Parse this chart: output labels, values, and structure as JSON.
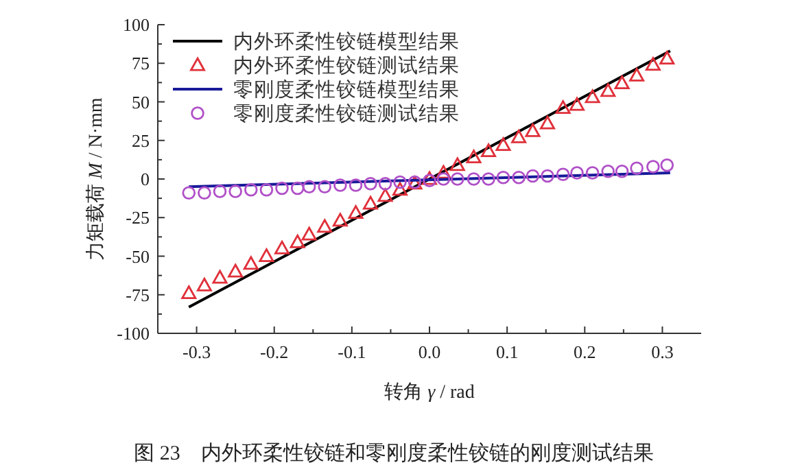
{
  "chart_data": {
    "type": "line",
    "xlabel": "转角 *γ* / rad",
    "ylabel": "力矩载荷 *M* / N·mm",
    "annotations": [
      "图 23　内外环柔性铰链和零刚度柔性铰链的刚度测试结果"
    ],
    "xlim": [
      -0.35,
      0.35
    ],
    "ylim": [
      -100,
      100
    ],
    "xticks": [
      -0.3,
      {
        "value": -0.25,
        "label": null
      },
      -0.2,
      {
        "value": -0.15,
        "label": null
      },
      -0.1,
      {
        "value": -0.05,
        "label": null
      },
      {
        "value": 0,
        "label": "0.0"
      },
      {
        "value": 0.05,
        "label": null
      },
      0.1,
      {
        "value": 0.15,
        "label": null
      },
      0.2,
      {
        "value": 0.25,
        "label": null
      },
      0.3
    ],
    "yticks": [
      -100,
      {
        "value": -87.5,
        "label": null
      },
      -75,
      {
        "value": -62.5,
        "label": null
      },
      -50,
      {
        "value": -37.5,
        "label": null
      },
      -25,
      {
        "value": -12.5,
        "label": null
      },
      0,
      {
        "value": 12.5,
        "label": null
      },
      25,
      {
        "value": 37.5,
        "label": null
      },
      50,
      {
        "value": 62.5,
        "label": null
      },
      75,
      {
        "value": 87.5,
        "label": null
      },
      100
    ],
    "legend": "top left",
    "grid": false,
    "series": [
      {
        "name": "内外环柔性铰链模型结果",
        "marker": "none",
        "color": "#000000",
        "x": [
          -0.31,
          0.31
        ],
        "values": [
          -83,
          83
        ]
      },
      {
        "name": "内外环柔性铰链测试结果",
        "type": "scatter",
        "marker": "triangle",
        "color": "#e0303a",
        "x": [
          -0.31,
          -0.29,
          -0.27,
          -0.25,
          -0.23,
          -0.21,
          -0.19,
          -0.17,
          -0.155,
          -0.135,
          -0.115,
          -0.095,
          -0.076,
          -0.057,
          -0.038,
          -0.019,
          0,
          0.018,
          0.036,
          0.057,
          0.076,
          0.095,
          0.115,
          0.133,
          0.152,
          0.172,
          0.19,
          0.21,
          0.23,
          0.248,
          0.267,
          0.288,
          0.306
        ],
        "values": [
          -74,
          -69,
          -64,
          -60,
          -55,
          -50,
          -45,
          -41,
          -36,
          -31,
          -27,
          -22,
          -16,
          -11,
          -7,
          -3,
          0,
          4,
          9,
          14,
          18,
          22,
          27,
          31,
          36,
          46,
          48,
          53,
          57,
          62,
          67,
          74,
          78
        ]
      },
      {
        "name": "零刚度柔性铰链模型结果",
        "marker": "none",
        "color": "#1a1a9a",
        "x": [
          -0.31,
          0.31
        ],
        "values": [
          -5,
          4
        ]
      },
      {
        "name": "零刚度柔性铰链测试结果",
        "type": "scatter",
        "marker": "circle",
        "color": "#b050c8",
        "x": [
          -0.31,
          -0.29,
          -0.27,
          -0.25,
          -0.23,
          -0.21,
          -0.19,
          -0.17,
          -0.155,
          -0.135,
          -0.115,
          -0.095,
          -0.076,
          -0.057,
          -0.038,
          -0.019,
          0,
          0.018,
          0.036,
          0.057,
          0.076,
          0.095,
          0.115,
          0.133,
          0.152,
          0.172,
          0.19,
          0.21,
          0.23,
          0.248,
          0.267,
          0.288,
          0.306
        ],
        "values": [
          -9,
          -9,
          -8,
          -8,
          -7,
          -7,
          -6,
          -6,
          -5,
          -5,
          -4,
          -4,
          -3,
          -3,
          -2,
          -2,
          -1,
          0,
          0,
          0,
          0,
          1,
          1,
          2,
          2,
          3,
          4,
          4,
          5,
          5,
          7,
          8,
          9
        ]
      }
    ]
  }
}
